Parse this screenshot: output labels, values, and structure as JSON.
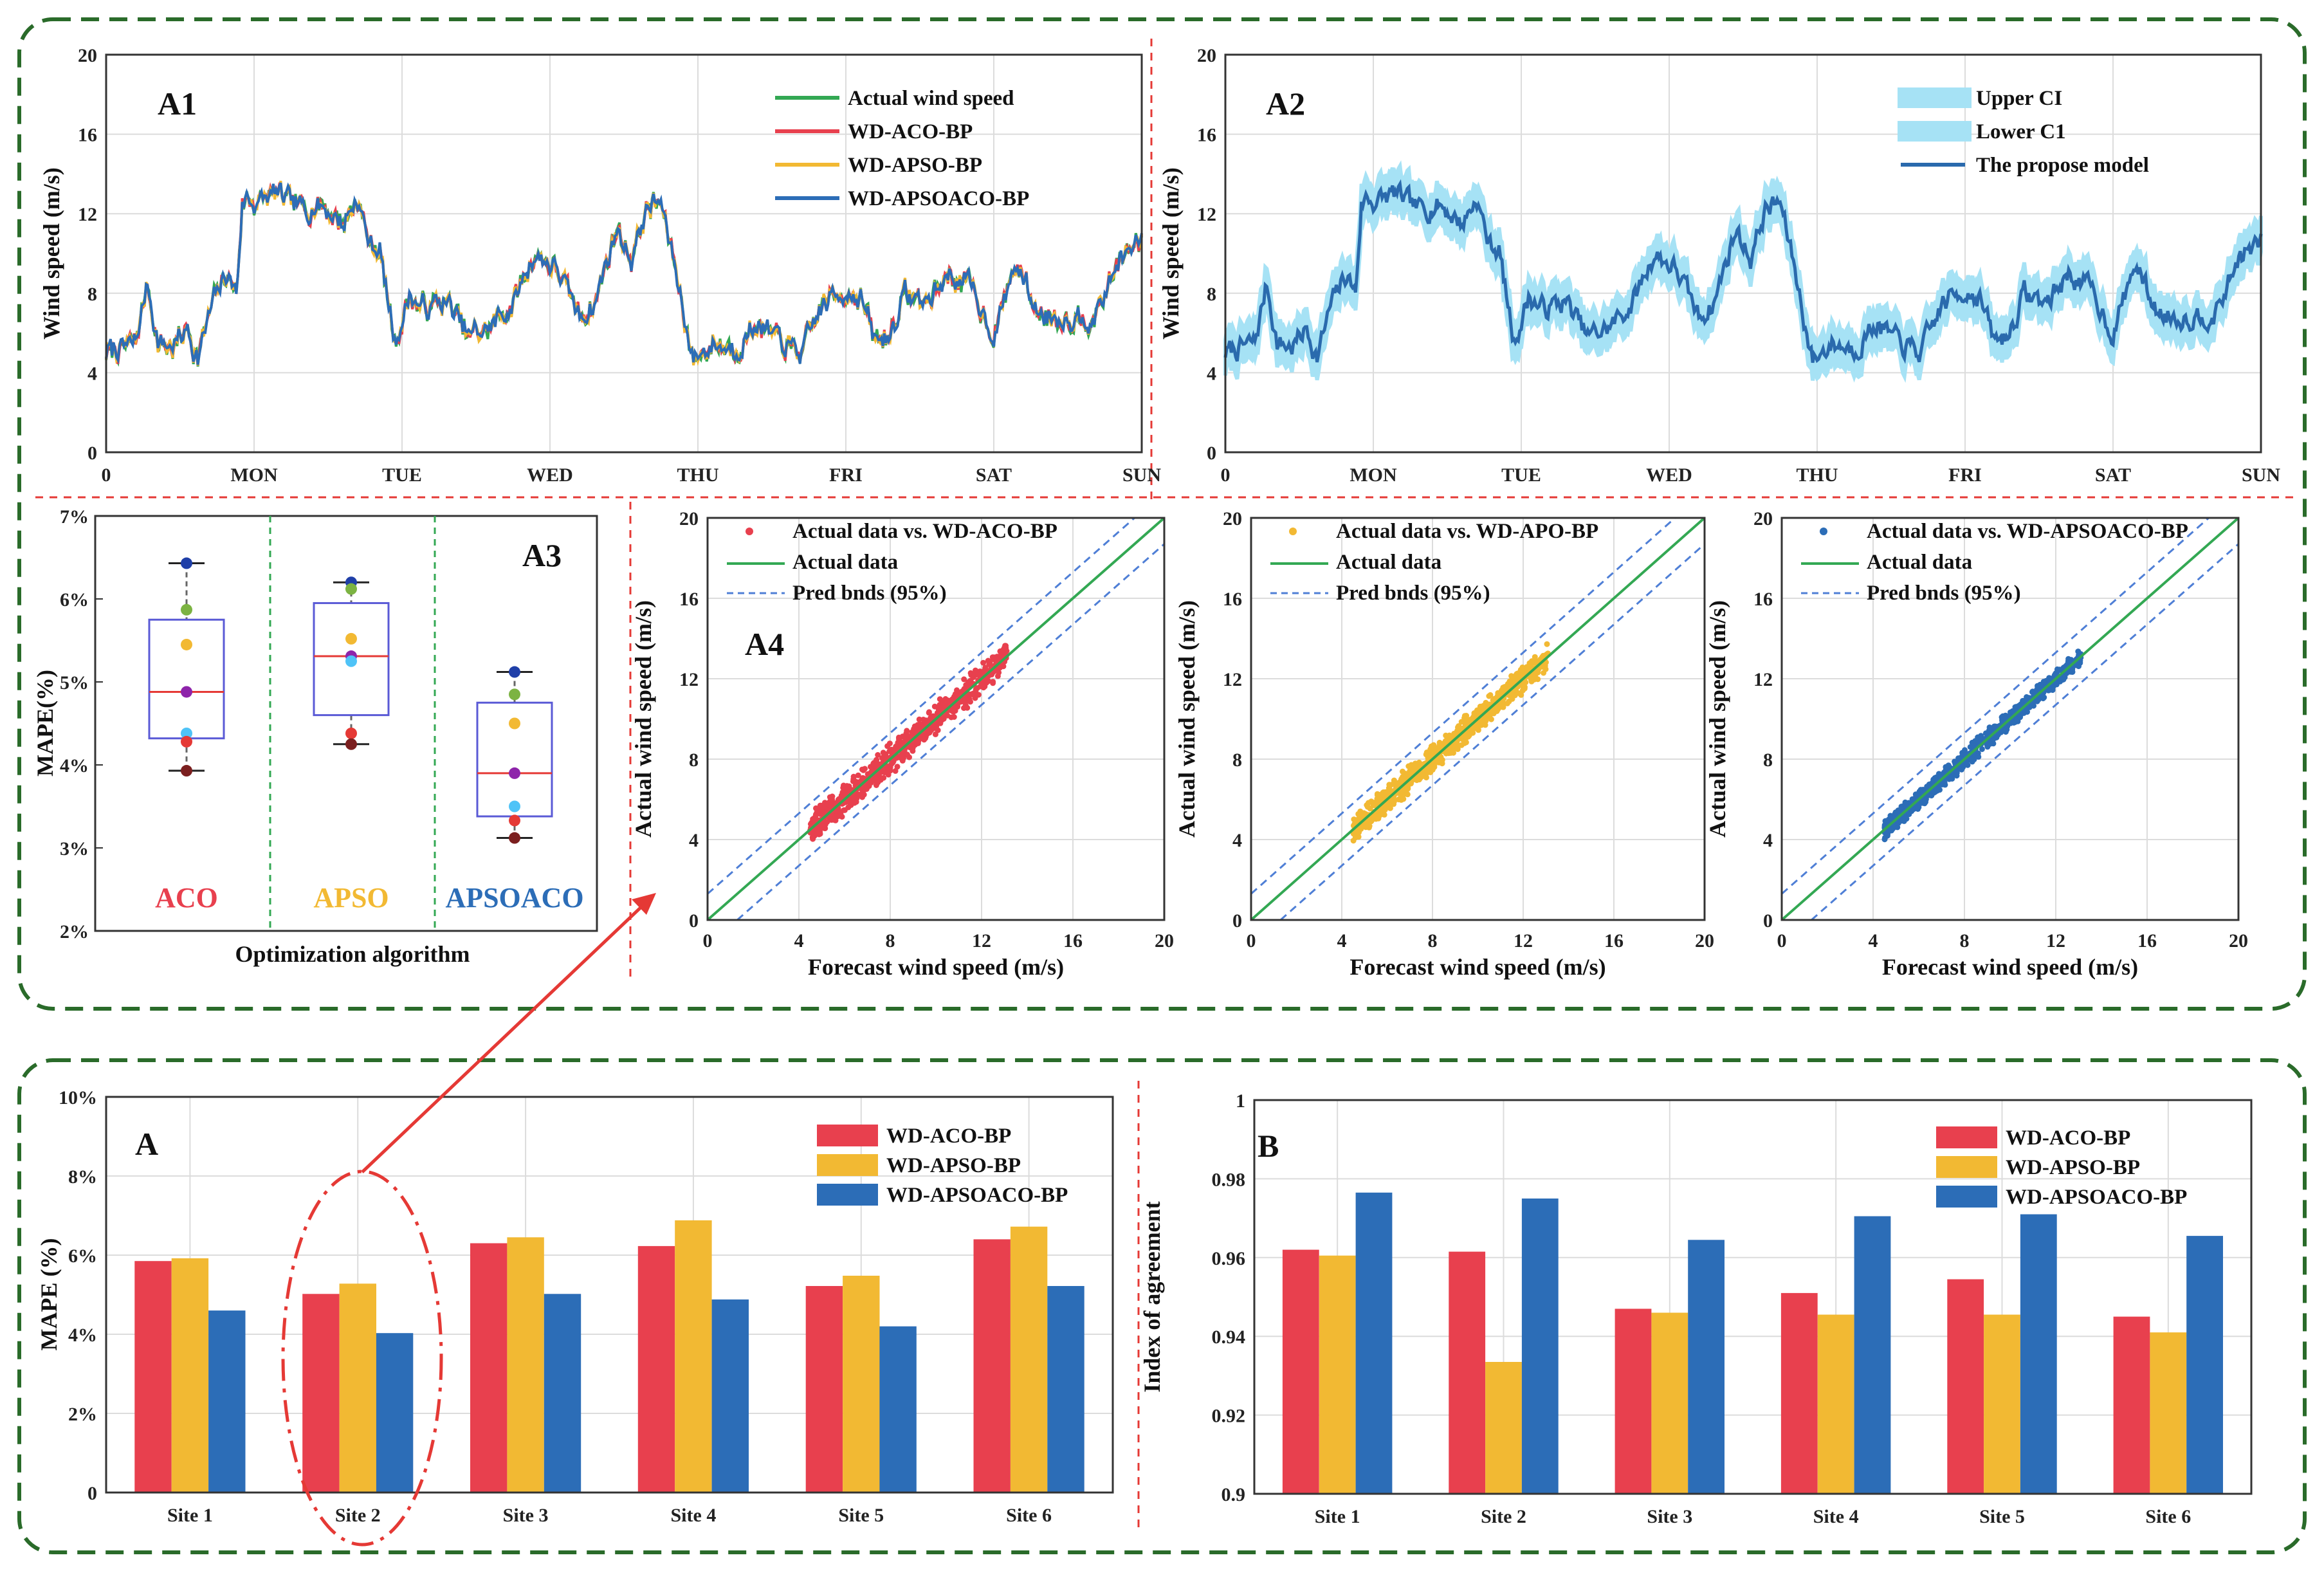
{
  "colors": {
    "frame": "#2a6b2a",
    "divider": "#e53935",
    "green": "#33a853",
    "red": "#e8404e",
    "yellow": "#f2b933",
    "blue": "#2c6db7",
    "ci": "#a6e2f5",
    "propose": "#2a6aad",
    "grid": "#dcdcdc",
    "bnds": "#4f7fd6"
  },
  "chart_data": [
    {
      "id": "A1",
      "type": "line",
      "title": "A1",
      "xlabel": "",
      "ylabel": "Wind speed (m/s)",
      "ylim": [
        0,
        20
      ],
      "xlim": [
        0,
        7
      ],
      "x_tick_labels": [
        "0",
        "MON",
        "TUE",
        "WED",
        "THU",
        "FRI",
        "SAT",
        "SUN"
      ],
      "y_tick_labels": [
        "0",
        "4",
        "8",
        "12",
        "16",
        "20"
      ],
      "anchors_x": [
        0,
        0.2,
        0.28,
        0.35,
        0.45,
        0.55,
        0.62,
        0.72,
        0.82,
        0.88,
        0.92,
        0.95,
        1.0,
        1.15,
        1.3,
        1.45,
        1.6,
        1.7,
        1.78,
        1.85,
        1.95,
        2.05,
        2.15,
        2.3,
        2.45,
        2.6,
        2.75,
        2.9,
        3.05,
        3.2,
        3.3,
        3.45,
        3.55,
        3.65,
        3.75,
        3.85,
        3.93,
        3.97,
        4.1,
        4.25,
        4.4,
        4.55,
        4.7,
        4.85,
        5.0,
        5.1,
        5.2,
        5.3,
        5.4,
        5.55,
        5.7,
        5.85,
        6.0,
        6.15,
        6.3,
        6.5,
        6.7,
        6.85,
        7.0
      ],
      "anchors_y": [
        5.0,
        5.5,
        8.5,
        5.5,
        5.3,
        6.2,
        4.8,
        7.5,
        9.0,
        8.0,
        12.5,
        12.8,
        12.6,
        13.0,
        12.2,
        12.5,
        11.5,
        12.8,
        10.5,
        10.2,
        5.5,
        7.8,
        7.2,
        7.6,
        5.8,
        6.3,
        7.5,
        10.0,
        9.2,
        6.8,
        7.5,
        11.2,
        9.8,
        12.2,
        12.6,
        9.2,
        6.0,
        4.6,
        5.5,
        5.2,
        6.5,
        5.5,
        5.0,
        7.5,
        8.2,
        7.8,
        5.5,
        6.0,
        8.0,
        7.5,
        9.0,
        8.2,
        6.0,
        9.5,
        7.0,
        6.8,
        7.0,
        9.8,
        10.5
      ],
      "series": [
        {
          "name": "Actual wind speed",
          "color": "#33a853",
          "noise": 0.55
        },
        {
          "name": "WD-ACO-BP",
          "color": "#e8404e",
          "noise": 0.4
        },
        {
          "name": "WD-APSO-BP",
          "color": "#f2b933",
          "noise": 0.4
        },
        {
          "name": "WD-APSOACO-BP",
          "color": "#2c6db7",
          "noise": 0.3
        }
      ],
      "legend": [
        "Actual wind speed",
        "WD-ACO-BP",
        "WD-APSO-BP",
        "WD-APSOACO-BP"
      ]
    },
    {
      "id": "A2",
      "type": "area",
      "title": "A2",
      "xlabel": "",
      "ylabel": "Wind speed (m/s)",
      "ylim": [
        0,
        20
      ],
      "xlim": [
        0,
        7
      ],
      "x_tick_labels": [
        "0",
        "MON",
        "TUE",
        "WED",
        "THU",
        "FRI",
        "SAT",
        "SUN"
      ],
      "y_tick_labels": [
        "0",
        "4",
        "8",
        "12",
        "16",
        "20"
      ],
      "ci_halfwidth": 0.9,
      "legend": [
        "Upper CI",
        "Lower C1",
        "The propose model"
      ]
    },
    {
      "id": "A3",
      "type": "box",
      "title": "A3",
      "xlabel": "Optimization algorithm",
      "ylabel": "MAPE(%)",
      "ylim": [
        2,
        7
      ],
      "y_tick_labels": [
        "2%",
        "3%",
        "4%",
        "5%",
        "6%",
        "7%"
      ],
      "groups": [
        {
          "name": "ACO",
          "color": "#e8404e",
          "min": 3.93,
          "q1": 4.32,
          "median": 4.88,
          "q3": 5.75,
          "max": 6.43,
          "points": [
            6.43,
            5.87,
            5.45,
            4.88,
            4.38,
            4.28,
            3.93
          ]
        },
        {
          "name": "APSO",
          "color": "#f2b933",
          "min": 4.25,
          "q1": 4.6,
          "median": 5.31,
          "q3": 5.95,
          "max": 6.2,
          "points": [
            6.2,
            6.12,
            5.52,
            5.31,
            5.25,
            4.38,
            4.25
          ]
        },
        {
          "name": "APSOACO",
          "color": "#2c6db7",
          "min": 3.12,
          "q1": 3.38,
          "median": 3.9,
          "q3": 4.75,
          "max": 5.12,
          "points": [
            5.12,
            4.85,
            4.5,
            3.9,
            3.5,
            3.33,
            3.12
          ]
        }
      ]
    },
    {
      "id": "A4",
      "type": "scatter",
      "title": "A4",
      "xlabel": "Forecast wind speed (m/s)",
      "ylabel": "Actual wind speed (m/s)",
      "xlim": [
        0,
        20
      ],
      "ylim": [
        0,
        20
      ],
      "tick_labels": [
        "0",
        "4",
        "8",
        "12",
        "16",
        "20"
      ],
      "pred_band": 1.3,
      "panels": [
        {
          "legend": [
            "Actual data vs. WD-ACO-BP",
            "Actual data",
            "Pred bnds (95%)"
          ],
          "color": "#e8404e",
          "spread": 0.55
        },
        {
          "legend": [
            "Actual data vs. WD-APO-BP",
            "Actual data",
            "Pred bnds (95%)"
          ],
          "color": "#f2b933",
          "spread": 0.5
        },
        {
          "legend": [
            "Actual data vs. WD-APSOACO-BP",
            "Actual data",
            "Pred bnds (95%)"
          ],
          "color": "#2c6db7",
          "spread": 0.35
        }
      ]
    },
    {
      "id": "A",
      "type": "bar",
      "title": "A",
      "xlabel": "",
      "ylabel": "MAPE (%)",
      "ylim": [
        0,
        10
      ],
      "y_tick_labels": [
        "0",
        "2%",
        "4%",
        "6%",
        "8%",
        "10%"
      ],
      "categories": [
        "Site 1",
        "Site 2",
        "Site 3",
        "Site 4",
        "Site 5",
        "Site 6"
      ],
      "series": [
        {
          "name": "WD-ACO-BP",
          "color": "#e8404e",
          "values": [
            5.85,
            5.02,
            6.3,
            6.23,
            5.22,
            6.4
          ]
        },
        {
          "name": "WD-APSO-BP",
          "color": "#f2b933",
          "values": [
            5.92,
            5.28,
            6.45,
            6.88,
            5.48,
            6.72
          ]
        },
        {
          "name": "WD-APSOACO-BP",
          "color": "#2c6db7",
          "values": [
            4.6,
            4.03,
            5.02,
            4.88,
            4.2,
            5.22
          ]
        }
      ]
    },
    {
      "id": "B",
      "type": "bar",
      "title": "B",
      "xlabel": "",
      "ylabel": "Index of agreement",
      "ylim": [
        0.9,
        1.0
      ],
      "y_tick_labels": [
        "0.9",
        "0.92",
        "0.94",
        "0.96",
        "0.98",
        "1"
      ],
      "categories": [
        "Site 1",
        "Site 2",
        "Site 3",
        "Site 4",
        "Site 5",
        "Site 6"
      ],
      "series": [
        {
          "name": "WD-ACO-BP",
          "color": "#e8404e",
          "values": [
            0.962,
            0.9615,
            0.947,
            0.951,
            0.9545,
            0.945
          ]
        },
        {
          "name": "WD-APSO-BP",
          "color": "#f2b933",
          "values": [
            0.9605,
            0.9335,
            0.946,
            0.9455,
            0.9455,
            0.941
          ]
        },
        {
          "name": "WD-APSOACO-BP",
          "color": "#2c6db7",
          "values": [
            0.9765,
            0.975,
            0.9645,
            0.9705,
            0.971,
            0.9655
          ]
        }
      ]
    }
  ]
}
